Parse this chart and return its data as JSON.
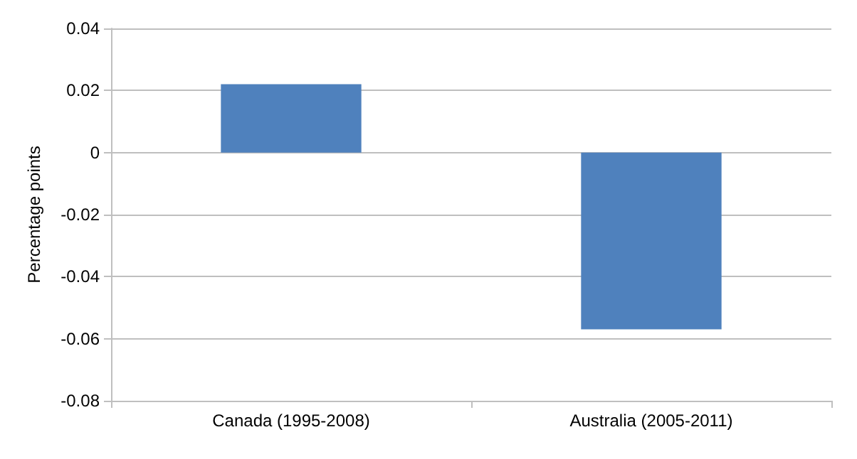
{
  "chart_data": {
    "type": "bar",
    "ylabel": "Percentage points",
    "categories": [
      "Canada (1995-2008)",
      "Australia (2005-2011)"
    ],
    "values": [
      0.022,
      -0.057
    ],
    "color": "#4f81bd",
    "ylim": [
      -0.08,
      0.04
    ],
    "yticks": [
      -0.08,
      -0.06,
      -0.04,
      -0.02,
      0,
      0.02,
      0.04
    ],
    "grid": "y"
  }
}
